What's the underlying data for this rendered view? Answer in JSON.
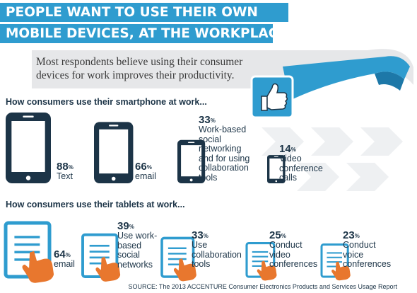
{
  "title": {
    "line1": "PEOPLE WANT TO USE THEIR OWN",
    "line2": "MOBILE DEVICES, AT THE WORKPLACE"
  },
  "intro": "Most respondents believe using their consumer devices for work improves their productivity.",
  "source": "SOURCE: The 2013 ACCENTURE Consumer Electronics Products and Services Usage Report",
  "percent_symbol": "%",
  "colors": {
    "title_bg": "#2f9ccf",
    "device_dark": "#1c3447",
    "tablet_blue": "#2f9ccf",
    "hand_orange": "#e8772e",
    "banner_gray": "#e6e7e9"
  },
  "chart_data": [
    {
      "type": "bar",
      "title": "How consumers use their smartphone at work...",
      "categories": [
        "Text",
        "email",
        "Work-based social networking and for using collaboration tools",
        "Video conference calls"
      ],
      "values": [
        88,
        66,
        33,
        14
      ],
      "unit": "%"
    },
    {
      "type": "bar",
      "title": "How consumers use their tablets at work...",
      "categories": [
        "email",
        "Use work-based social networks",
        "Use collaboration tools",
        "Conduct video conferences",
        "Conduct voice conferences"
      ],
      "values": [
        64,
        39,
        33,
        25,
        23
      ],
      "unit": "%"
    }
  ]
}
